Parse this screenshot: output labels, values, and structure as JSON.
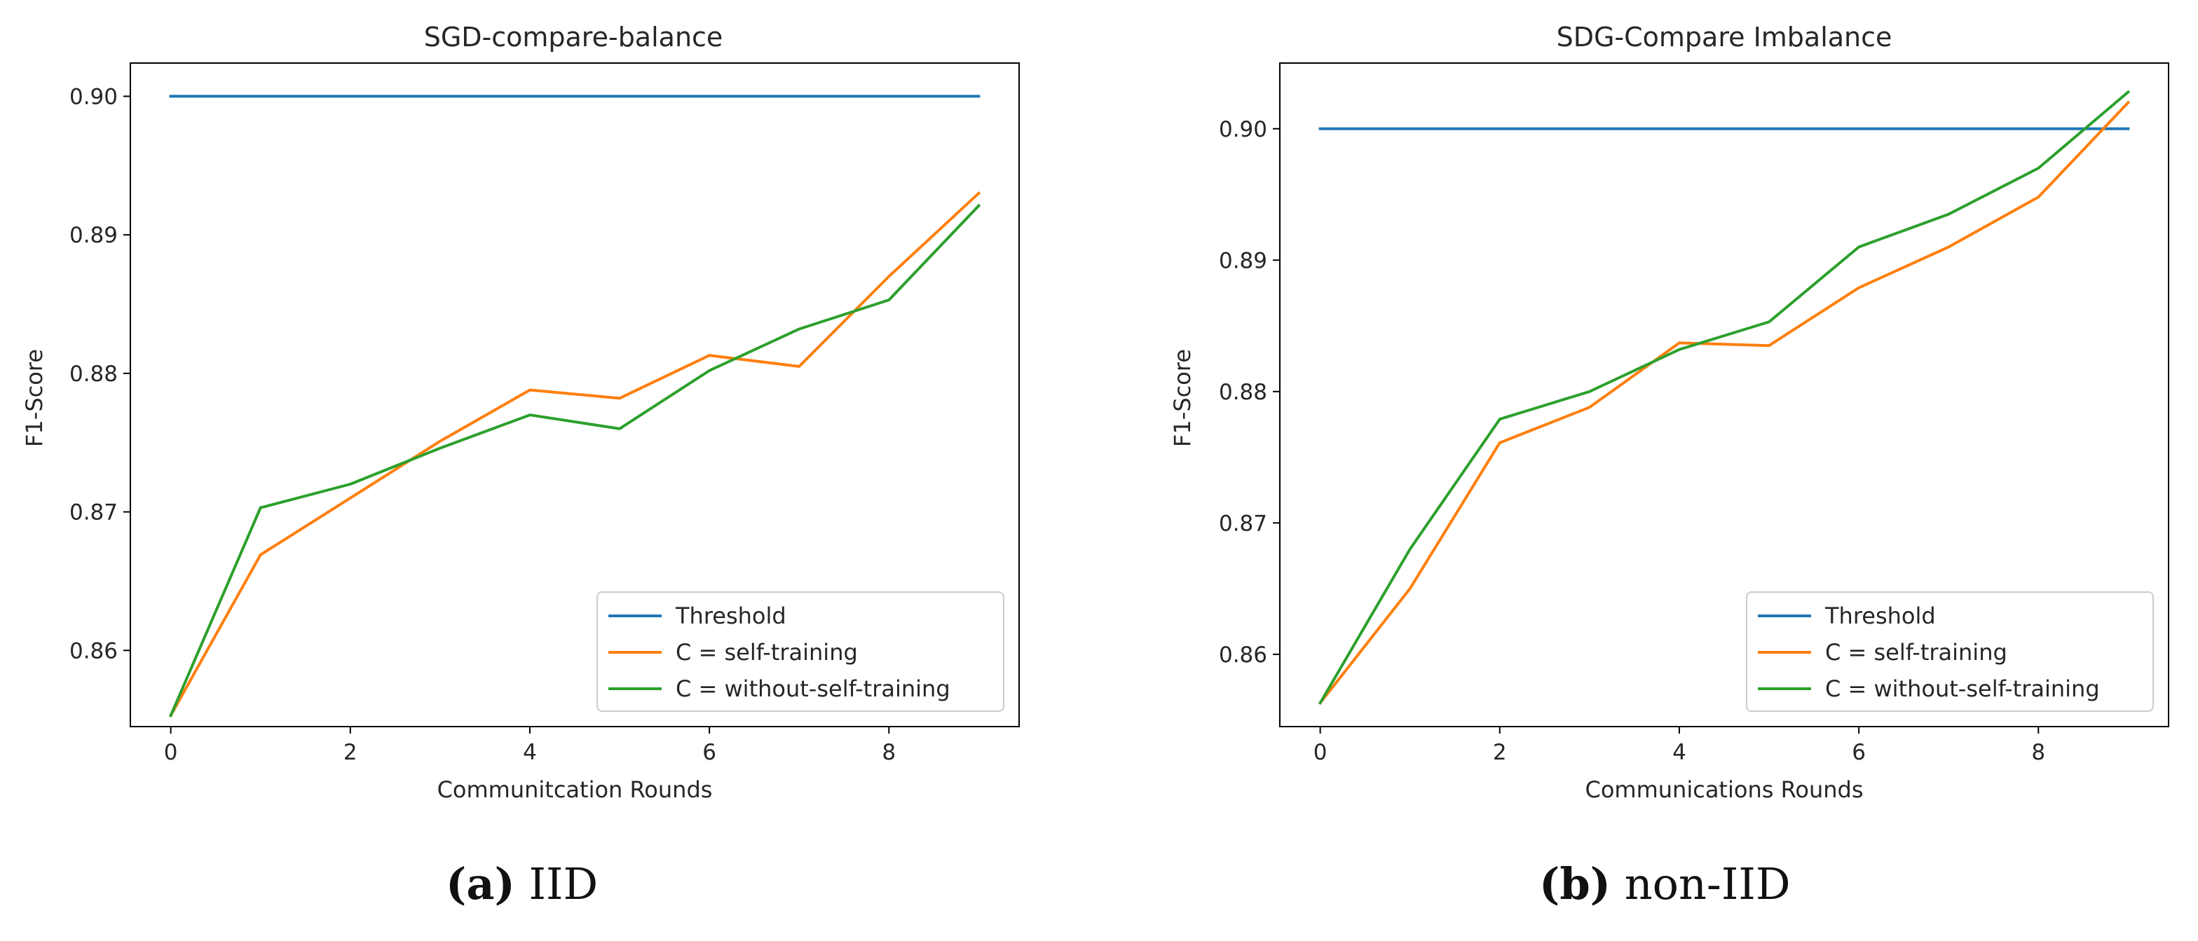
{
  "chart_data": [
    {
      "type": "line",
      "title": "SGD-compare-balance",
      "xlabel": "Communitcation Rounds",
      "ylabel": "F1-Score",
      "xlim": [
        -0.45,
        9.45
      ],
      "ylim": [
        0.8545,
        0.9024
      ],
      "xticks": [
        0,
        2,
        4,
        6,
        8
      ],
      "yticks": [
        0.86,
        0.87,
        0.88,
        0.89,
        0.9
      ],
      "ytick_labels": [
        "0.86",
        "0.87",
        "0.88",
        "0.89",
        "0.90"
      ],
      "legend_position": "lower right",
      "x": [
        0,
        1,
        2,
        3,
        4,
        5,
        6,
        7,
        8,
        9
      ],
      "series": [
        {
          "name": "Threshold",
          "color": "#1f77b4",
          "values": [
            0.9,
            0.9,
            0.9,
            0.9,
            0.9,
            0.9,
            0.9,
            0.9,
            0.9,
            0.9
          ]
        },
        {
          "name": "C = self-training",
          "color": "#ff7f0e",
          "values": [
            0.8553,
            0.8669,
            0.871,
            0.8751,
            0.8788,
            0.8782,
            0.8813,
            0.8805,
            0.887,
            0.893
          ]
        },
        {
          "name": "C = without-self-training",
          "color": "#2ca02c",
          "values": [
            0.8553,
            0.8703,
            0.872,
            0.8746,
            0.877,
            0.876,
            0.8802,
            0.8832,
            0.8853,
            0.8921
          ]
        }
      ],
      "caption_letter": "(a)",
      "caption_text": " IID"
    },
    {
      "type": "line",
      "title": "SDG-Compare Imbalance",
      "xlabel": "Communications Rounds",
      "ylabel": "F1-Score",
      "xlim": [
        -0.45,
        9.45
      ],
      "ylim": [
        0.8545,
        0.905
      ],
      "xticks": [
        0,
        2,
        4,
        6,
        8
      ],
      "yticks": [
        0.86,
        0.87,
        0.88,
        0.89,
        0.9
      ],
      "ytick_labels": [
        "0.86",
        "0.87",
        "0.88",
        "0.89",
        "0.90"
      ],
      "legend_position": "lower right",
      "x": [
        0,
        1,
        2,
        3,
        4,
        5,
        6,
        7,
        8,
        9
      ],
      "series": [
        {
          "name": "Threshold",
          "color": "#1f77b4",
          "values": [
            0.9,
            0.9,
            0.9,
            0.9,
            0.9,
            0.9,
            0.9,
            0.9,
            0.9,
            0.9
          ]
        },
        {
          "name": "C = self-training",
          "color": "#ff7f0e",
          "values": [
            0.8563,
            0.865,
            0.8761,
            0.8788,
            0.8837,
            0.8835,
            0.8879,
            0.891,
            0.8948,
            0.902
          ]
        },
        {
          "name": "C = without-self-training",
          "color": "#2ca02c",
          "values": [
            0.8563,
            0.868,
            0.8779,
            0.88,
            0.8832,
            0.8853,
            0.891,
            0.8935,
            0.897,
            0.9028
          ]
        }
      ],
      "caption_letter": "(b)",
      "caption_text": " non-IID"
    }
  ]
}
